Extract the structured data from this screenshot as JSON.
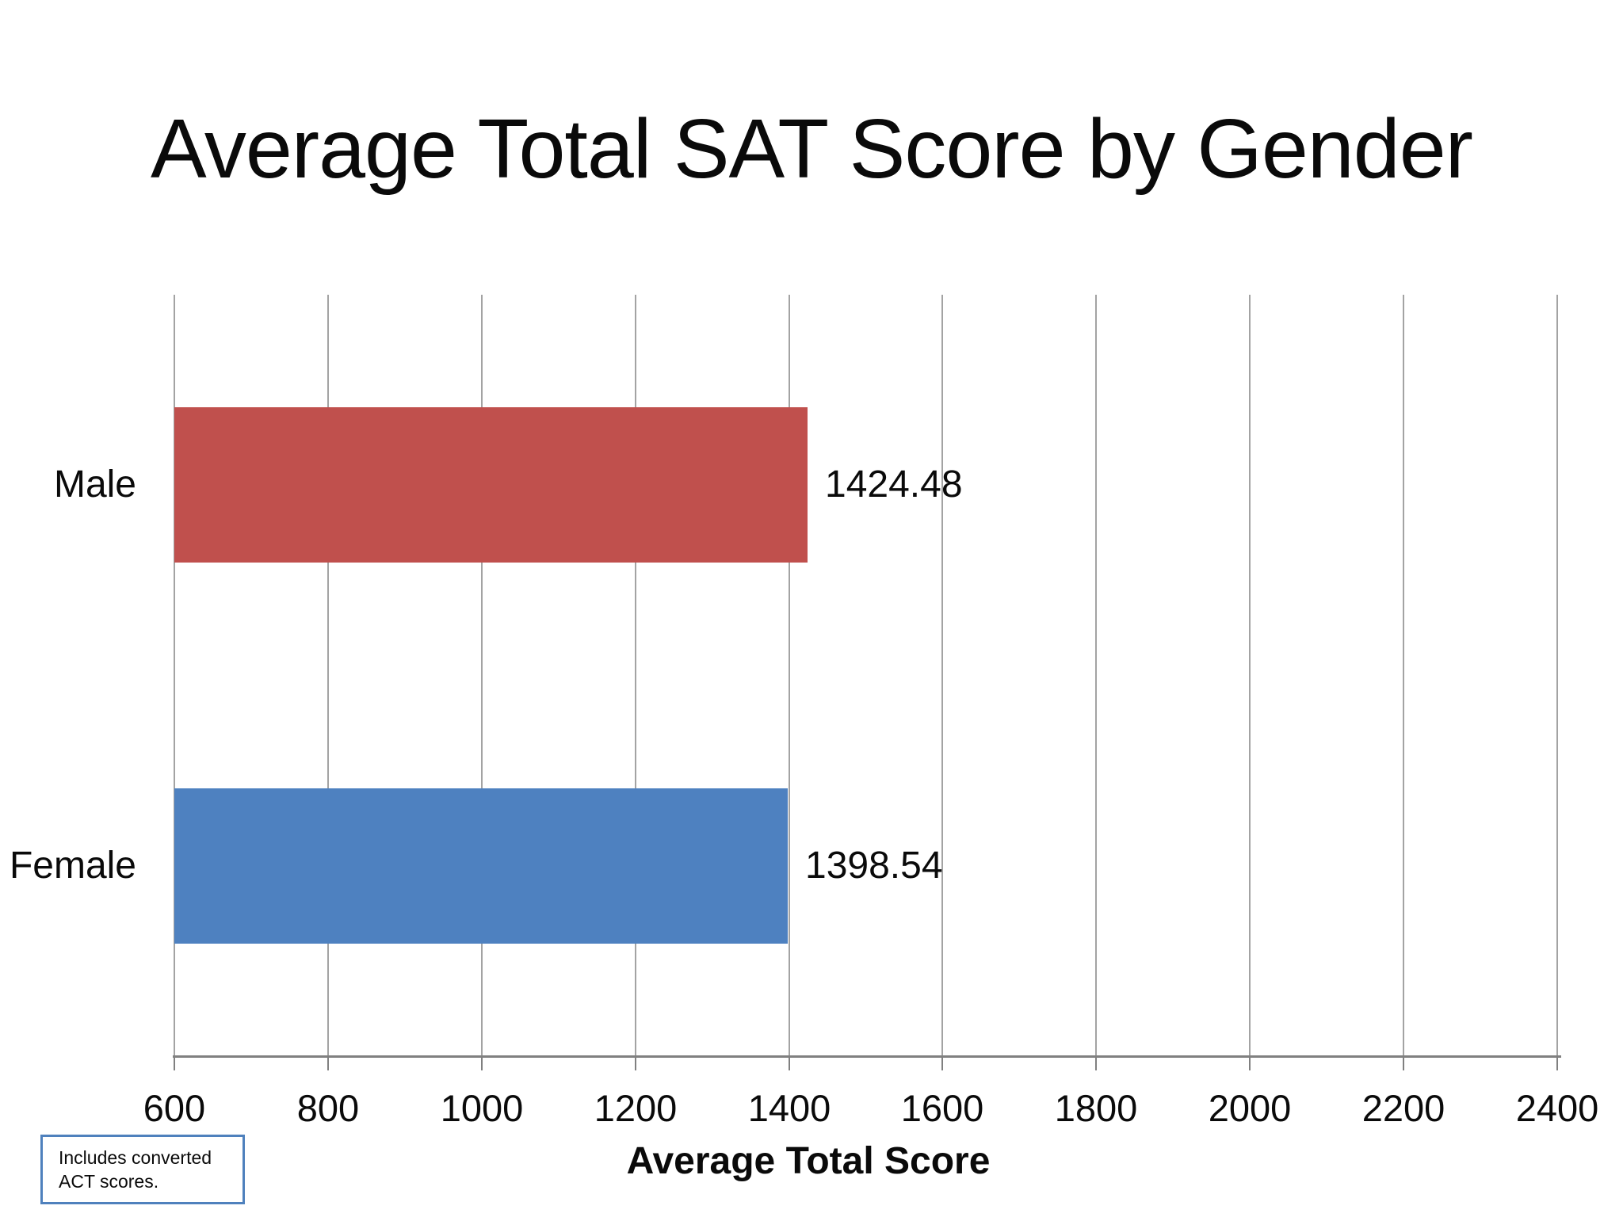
{
  "chart_data": {
    "type": "bar",
    "orientation": "horizontal",
    "title": "Average Total SAT Score by Gender",
    "categories": [
      "Male",
      "Female"
    ],
    "values": [
      1424.48,
      1398.54
    ],
    "value_labels": [
      "1424.48",
      "1398.54"
    ],
    "bar_colors": [
      "#c0504d",
      "#4e81c0"
    ],
    "xlabel": "Average Total Score",
    "xlim": [
      600,
      2400
    ],
    "xticks": [
      "600",
      "800",
      "1000",
      "1200",
      "1400",
      "1600",
      "1800",
      "2000",
      "2200",
      "2400"
    ],
    "grid": true,
    "legend": "none"
  },
  "note": {
    "text": "Includes converted ACT scores.",
    "border_color": "#4f81bd"
  },
  "colors": {
    "gridline": "#a3a3a3",
    "axis_line": "#808080"
  }
}
